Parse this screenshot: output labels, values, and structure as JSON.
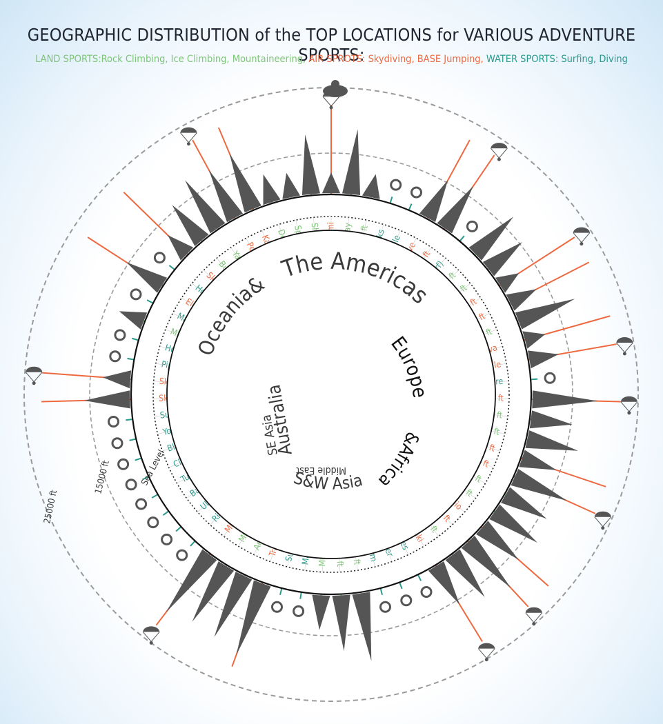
{
  "title": "GEOGRAPHIC DISTRIBUTION of the TOP LOCATIONS for VARIOUS ADVENTURE SPORTS:",
  "subtitle": {
    "land": "LAND SPORTS:Rock Climbing, Ice Climbing, Mountaineering,",
    "air": "AIR SPROTS: Skydiving, BASE Jumping,",
    "water": "WATER SPORTS: Surfing, Diving"
  },
  "colors": {
    "land": "#7cc576",
    "air": "#ee6940",
    "water": "#2a9a8c",
    "text": "#3a3a3a",
    "silhouette": "#555555",
    "ring": "#111111",
    "dashed": "#9a9a9a"
  },
  "scale_labels": {
    "sea_level": "Sea Level",
    "ft_15000": "15000 ft",
    "ft_25000": "25000 ft"
  },
  "regions": [
    {
      "name": "The Americas"
    },
    {
      "name": "Europe"
    },
    {
      "name": "&Africa"
    },
    {
      "name": "Middle East"
    },
    {
      "name": "S&W Asia"
    },
    {
      "name": "SE Asia"
    },
    {
      "name": "Australia"
    },
    {
      "name": "Oceania&"
    }
  ],
  "chart_data": {
    "type": "radial",
    "locations": [
      {
        "label": "Felix Baumgartner 24 mi",
        "sport": "air"
      },
      {
        "label": "San Juan Mt Duray",
        "sport": "land"
      },
      {
        "label": "Citlaltepetl 18405 ft",
        "sport": "land"
      },
      {
        "label": "Gordon Rocks",
        "sport": "water"
      },
      {
        "label": "Great Blue Hole",
        "sport": "water"
      },
      {
        "label": "Zephyrhills Skydive",
        "sport": "air"
      },
      {
        "label": "New River Gorge 3031 ft",
        "sport": "air"
      },
      {
        "label": "Lima (surf)",
        "sport": "water"
      },
      {
        "label": "Towers of Paine 9462 ft",
        "sport": "land"
      },
      {
        "label": "Machu Picchu 7972 ft",
        "sport": "land"
      },
      {
        "label": "Mt Thor 5495 ft",
        "sport": "air"
      },
      {
        "label": "Angel Falls 3212 ft",
        "sport": "air"
      },
      {
        "label": "Mt Roraima 9219 ft",
        "sport": "land"
      },
      {
        "label": "Skydive Boituva",
        "sport": "air"
      },
      {
        "label": "Skydive Seville",
        "sport": "air"
      },
      {
        "label": "Hasseqore",
        "sport": "water"
      },
      {
        "label": "Kjerag 3642 ft",
        "sport": "air"
      },
      {
        "label": "Matterhorn 14692 ft",
        "sport": "land"
      },
      {
        "label": "Kangersteq 3852 ft",
        "sport": "land"
      },
      {
        "label": "Mt Eiger 13025 ft",
        "sport": "air"
      },
      {
        "label": "Troll Wall 5577 ft",
        "sport": "air"
      },
      {
        "label": "Mt Gaustatoppen 6178 ft",
        "sport": "land"
      },
      {
        "label": "Vajolet Towers 9255 ft",
        "sport": "land"
      },
      {
        "label": "Porto San Giorgio",
        "sport": "air"
      },
      {
        "label": "Table Mountain 3558 ft",
        "sport": "air"
      },
      {
        "label": "Rhodes Mt 8651 ft",
        "sport": "land"
      },
      {
        "label": "Tymnaki",
        "sport": "air"
      },
      {
        "label": "Supertubes",
        "sport": "water"
      },
      {
        "label": "Big Brother",
        "sport": "water"
      },
      {
        "label": "SS Thistlegorm",
        "sport": "water"
      },
      {
        "label": "Mt Kilimanjaro 19341 ft",
        "sport": "land"
      },
      {
        "label": "Mt Elbrus 18510 ft",
        "sport": "land"
      },
      {
        "label": "Mt Damavand 18406 ft",
        "sport": "land"
      },
      {
        "label": "Maya Thila",
        "sport": "water"
      },
      {
        "label": "Sultan",
        "sport": "water"
      },
      {
        "label": "Trango Towers 20623 ft",
        "sport": "air"
      },
      {
        "label": "Annapurna 26545 ft",
        "sport": "land"
      },
      {
        "label": "Mt Khuiten 14350 ft",
        "sport": "land"
      },
      {
        "label": "Mt Everest 29029 ft",
        "sport": "air"
      },
      {
        "label": "Richelieu Rock",
        "sport": "water"
      },
      {
        "label": "Uluwatu & Kuta",
        "sport": "water"
      },
      {
        "label": "Barracuda Point",
        "sport": "water"
      },
      {
        "label": "Tubbataha",
        "sport": "water"
      },
      {
        "label": "Cloud Nine",
        "sport": "water"
      },
      {
        "label": "Blue Corner Wall",
        "sport": "water"
      },
      {
        "label": "Yongala",
        "sport": "water"
      },
      {
        "label": "Superbanks",
        "sport": "water"
      },
      {
        "label": "Skydive New Zealand",
        "sport": "air"
      },
      {
        "label": "Skydive Dauhu",
        "sport": "air"
      },
      {
        "label": "Pipeline",
        "sport": "water"
      },
      {
        "label": "Honalua Bay",
        "sport": "water"
      },
      {
        "label": "Mt McKinley 20328 ft",
        "sport": "land"
      },
      {
        "label": "Mavericks",
        "sport": "water"
      },
      {
        "label": "El Capitan 7569 ft",
        "sport": "air"
      },
      {
        "label": "Helmcken Falls",
        "sport": "water"
      },
      {
        "label": "Skydive San Diego",
        "sport": "air"
      },
      {
        "label": "Bugaboo Spire 10512 ft",
        "sport": "land"
      },
      {
        "label": "Yamnuska Mt 7349 ft",
        "sport": "land"
      },
      {
        "label": "Perrine Bridge 486 ft",
        "sport": "air"
      },
      {
        "label": "Kalispell",
        "sport": "air"
      },
      {
        "label": "Dead Horse Point",
        "sport": "land"
      },
      {
        "label": "Spider rock 750 ft",
        "sport": "land"
      },
      {
        "label": "Shiprock 1583 ft",
        "sport": "land"
      }
    ]
  }
}
